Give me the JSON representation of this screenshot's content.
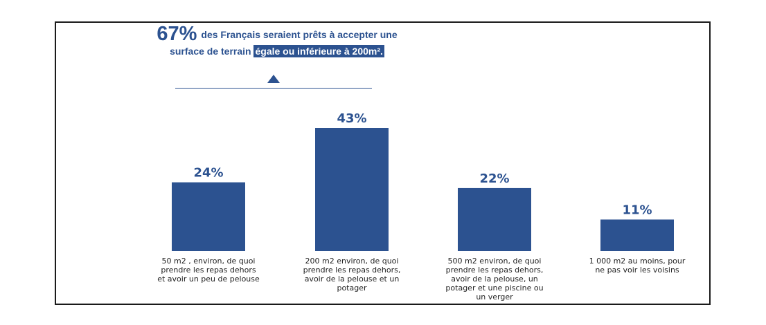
{
  "headline": {
    "big_value": "67%",
    "line1_text": "des Français seraient prêts à accepter une",
    "line2_prefix": "surface de terrain",
    "line2_highlight": "égale ou inférieure à 200m².",
    "arrow_icon": "triangle-up-icon"
  },
  "colors": {
    "bar": "#2c5290",
    "text_accent": "#2c5290",
    "label_text": "#222222",
    "frame": "#1a1a1a"
  },
  "chart_data": {
    "type": "bar",
    "title": "67% des Français seraient prêts à accepter une surface de terrain égale ou inférieure à 200m².",
    "xlabel": "",
    "ylabel": "",
    "ylim": [
      0,
      43
    ],
    "grid": false,
    "legend": "none",
    "categories": [
      "50 m2 , environ, de quoi prendre les repas dehors et avoir un peu de pelouse",
      "200 m2 environ, de quoi prendre les repas dehors, avoir de la pelouse et un potager",
      "500 m2 environ, de quoi prendre les repas dehors, avoir de la pelouse, un potager et une piscine ou un verger",
      "1 000 m2 au moins, pour ne pas voir les voisins"
    ],
    "values": [
      24,
      43,
      22,
      11
    ],
    "data_labels": [
      "24%",
      "43%",
      "22%",
      "11%"
    ],
    "unit": "%"
  },
  "labels": [
    {
      "lines": [
        "50 m2 , environ, de quoi",
        "prendre les repas dehors",
        "et avoir un peu de pelouse"
      ]
    },
    {
      "lines": [
        "200 m2 environ, de quoi",
        "prendre les repas dehors,",
        "avoir de la pelouse et un",
        "potager"
      ]
    },
    {
      "lines": [
        "500 m2 environ, de quoi",
        "prendre les repas dehors,",
        "avoir de la pelouse, un",
        "potager et une piscine ou",
        "un verger"
      ]
    },
    {
      "lines": [
        "1 000 m2 au moins, pour",
        "ne pas voir les voisins"
      ]
    }
  ]
}
